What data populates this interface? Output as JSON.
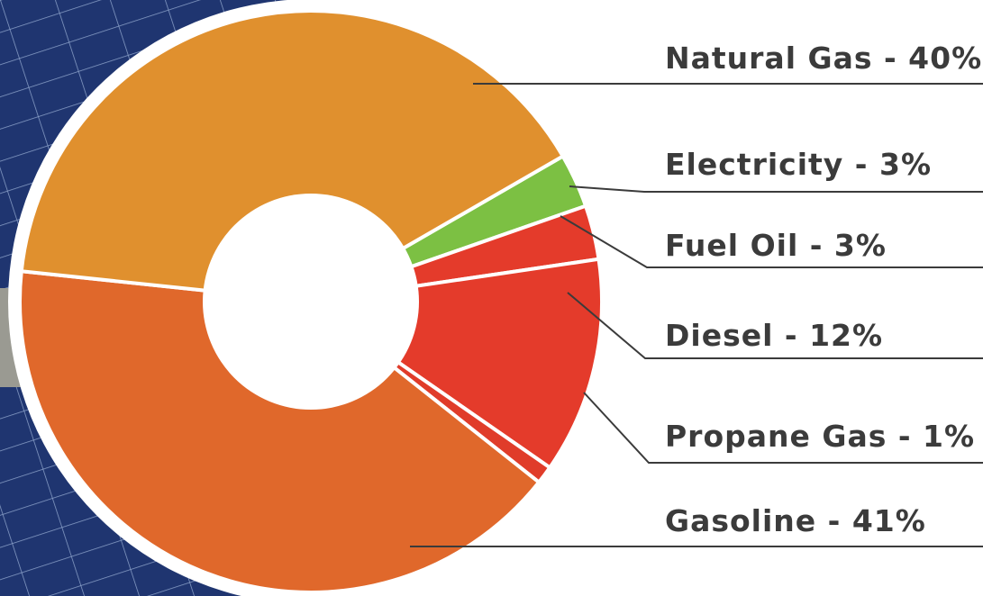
{
  "chart_data": {
    "type": "donut",
    "categories": [
      "Electricity - 3%",
      "Fuel Oil - 3%",
      "Diesel - 12%",
      "Propane Gas - 1%",
      "Gasoline - 41%",
      "Natural Gas - 40%"
    ],
    "values": [
      3,
      3,
      12,
      1,
      41,
      40
    ],
    "colors": [
      "#7cc043",
      "#e43b2b",
      "#e43b2b",
      "#e03c2a",
      "#e0682b",
      "#e0902e"
    ]
  }
}
